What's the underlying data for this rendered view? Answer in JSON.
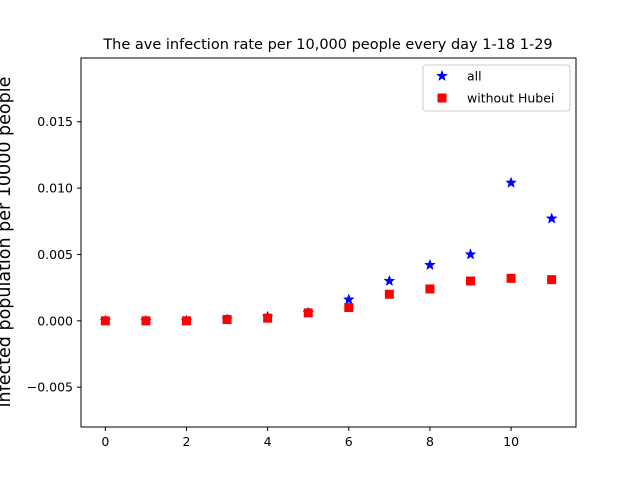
{
  "chart_data": {
    "type": "scatter",
    "title": "The ave infection rate per 10,000 people every day 1-18 1-29",
    "xlabel": "",
    "ylabel": "infected population per 10000 people",
    "xlim": [
      -0.6,
      11.6
    ],
    "ylim": [
      -0.008,
      0.0198
    ],
    "xticks": [
      0,
      2,
      4,
      6,
      8,
      10
    ],
    "xtick_labels": [
      "0",
      "2",
      "4",
      "6",
      "8",
      "10"
    ],
    "yticks": [
      -0.005,
      0.0,
      0.005,
      0.01,
      0.015
    ],
    "ytick_labels": [
      "−0.005",
      "0.000",
      "0.005",
      "0.010",
      "0.015"
    ],
    "grid": false,
    "legend": {
      "position": "top-right"
    },
    "series": [
      {
        "name": "all",
        "marker": "star",
        "color": "#0000ff",
        "x": [
          0,
          1,
          2,
          3,
          4,
          5,
          6,
          7,
          8,
          9,
          10,
          11
        ],
        "values": [
          0.0,
          0.0,
          0.0,
          0.0001,
          0.0003,
          0.0006,
          0.0016,
          0.003,
          0.0042,
          0.005,
          0.0104,
          0.0077
        ]
      },
      {
        "name": "without Hubei",
        "marker": "square",
        "color": "#ff0000",
        "x": [
          0,
          1,
          2,
          3,
          4,
          5,
          6,
          7,
          8,
          9,
          10,
          11
        ],
        "values": [
          0.0,
          0.0,
          0.0,
          0.0001,
          0.0002,
          0.0006,
          0.001,
          0.002,
          0.0024,
          0.003,
          0.0032,
          0.0031
        ]
      }
    ]
  }
}
